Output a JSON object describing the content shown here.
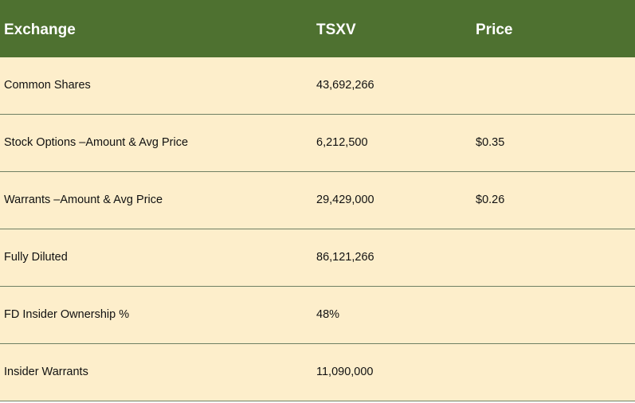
{
  "header": {
    "col1": "Exchange",
    "col2": "TSXV",
    "col3": "Price"
  },
  "rows": [
    {
      "label": "Common Shares",
      "tsxv": "43,692,266",
      "price": ""
    },
    {
      "label": "Stock Options –Amount & Avg Price",
      "tsxv": "6,212,500",
      "price": "$0.35"
    },
    {
      "label": "Warrants –Amount & Avg Price",
      "tsxv": "29,429,000",
      "price": "$0.26"
    },
    {
      "label": "Fully Diluted",
      "tsxv": "86,121,266",
      "price": ""
    },
    {
      "label": "FD Insider Ownership %",
      "tsxv": "48%",
      "price": ""
    },
    {
      "label": "Insider Warrants",
      "tsxv": "11,090,000",
      "price": ""
    }
  ],
  "colors": {
    "header_bg": "#4e7130",
    "row_bg": "#fdeecb",
    "divider": "#6f7f63"
  }
}
